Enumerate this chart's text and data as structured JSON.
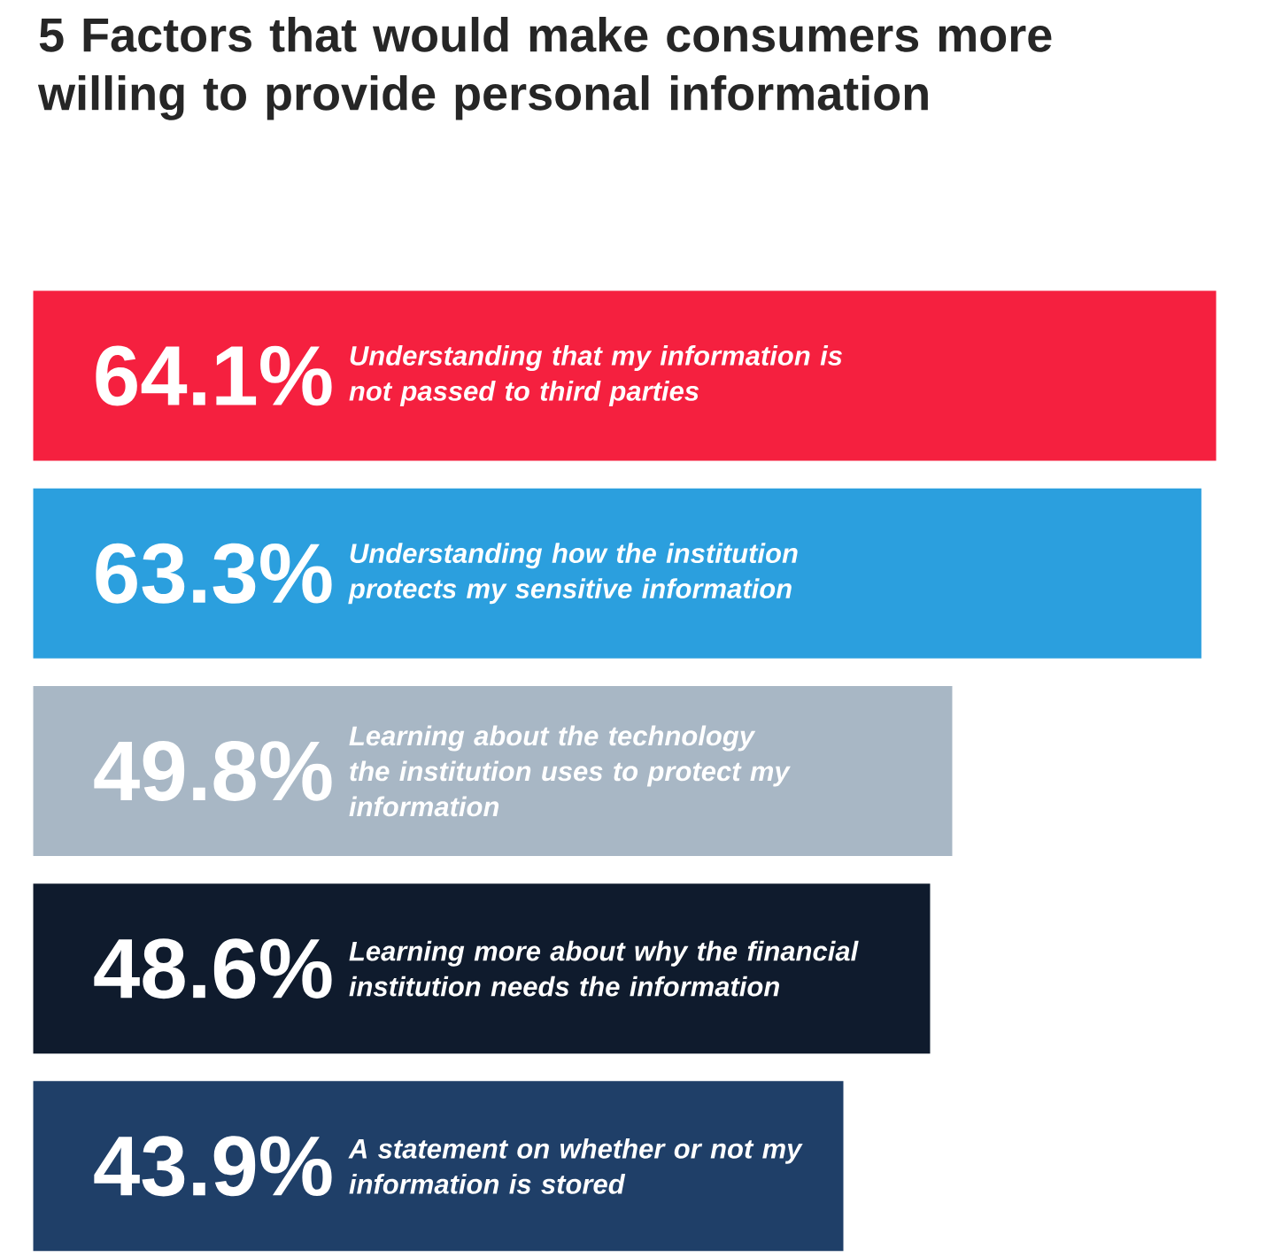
{
  "chart_data": {
    "type": "bar",
    "orientation": "horizontal",
    "title": "5 Factors that would make consumers more willing to provide personal information",
    "categories": [
      "Understanding that my information is not passed to third parties",
      "Understanding how the institution protects my sensitive information",
      "Learning about the technology the institution uses to protect my information",
      "Learning more about why the financial institution needs the information",
      "A statement on whether or not my information is stored"
    ],
    "values": [
      64.1,
      63.3,
      49.8,
      48.6,
      43.9
    ],
    "value_labels": [
      "64.1%",
      "63.3%",
      "49.8%",
      "48.6%",
      "43.9%"
    ],
    "colors": [
      "#f5203f",
      "#2b9fde",
      "#a8b7c5",
      "#0f1b2d",
      "#1f3f68"
    ]
  }
}
